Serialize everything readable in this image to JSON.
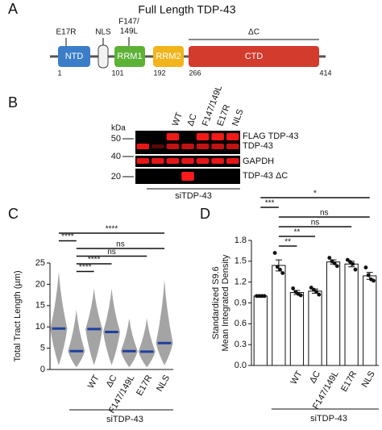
{
  "panel_a": {
    "letter": "A",
    "title": "Full Length TDP-43",
    "domains": [
      {
        "name": "NTD",
        "color": "#3b7dc8"
      },
      {
        "name": "RRM1",
        "color": "#5db236"
      },
      {
        "name": "RRM2",
        "color": "#f1b41c"
      },
      {
        "name": "CTD",
        "color": "#d33b2d"
      }
    ],
    "nls": "NLS",
    "mutation_a": "E17R",
    "mutation_b": [
      "F147/",
      "149L"
    ],
    "deletion": "ΔC",
    "positions": [
      1,
      101,
      192,
      266,
      414
    ]
  },
  "panel_b": {
    "letter": "B",
    "lanes": [
      "WT",
      "ΔC",
      "F147/149L",
      "E17R",
      "NLS"
    ],
    "kda_label": "kDa",
    "markers": [
      50,
      40,
      20
    ],
    "bands": [
      "FLAG TDP-43",
      "TDP-43",
      "GAPDH",
      "TDP-43 ΔC"
    ],
    "group_label": "siTDP-43"
  },
  "chart_data": [
    {
      "type": "swarm",
      "letter": "C",
      "ylabel": "Total Tract Length (µm)",
      "categories": [
        null,
        null,
        "WT",
        "ΔC",
        "F147/149L",
        "E17R",
        "NLS"
      ],
      "values": [
        9.6,
        4.3,
        9.5,
        8.8,
        4.3,
        4.2,
        6.2
      ],
      "low": [
        1,
        0.5,
        1,
        1,
        0.5,
        0.5,
        1
      ],
      "high": [
        23,
        14,
        19,
        19,
        12,
        12,
        21
      ],
      "color": "#1f3f9e",
      "point_color": "#a4a4a4",
      "ylim": [
        0,
        25
      ],
      "yticks": [
        0,
        5,
        10,
        15,
        20,
        25
      ],
      "group_label": "siTDP-43",
      "brackets": [
        {
          "from": 0,
          "to": 6,
          "label": "****"
        },
        {
          "from": 0,
          "to": 1,
          "label": "****"
        },
        {
          "from": 1,
          "to": 6,
          "label": "ns"
        },
        {
          "from": 1,
          "to": 5,
          "label": "ns"
        },
        {
          "from": 1,
          "to": 3,
          "label": "****"
        },
        {
          "from": 1,
          "to": 2,
          "label": "****"
        }
      ]
    },
    {
      "type": "bar",
      "letter": "D",
      "ylabel": [
        "Standardized S9.6",
        "Mean Integrated Density"
      ],
      "categories": [
        null,
        null,
        "WT",
        "ΔC",
        "F147/149L",
        "E17R",
        "NLS"
      ],
      "values": [
        1.0,
        1.44,
        1.05,
        1.07,
        1.49,
        1.46,
        1.29
      ],
      "errors": [
        0,
        0.08,
        0.03,
        0.03,
        0.03,
        0.04,
        0.05
      ],
      "points": [
        [
          1.0,
          1.0,
          1.0,
          1.0
        ],
        [
          1.62,
          1.42,
          1.38,
          1.33
        ],
        [
          1.11,
          1.06,
          1.03,
          1.01
        ],
        [
          1.12,
          1.09,
          1.06,
          1.02
        ],
        [
          1.55,
          1.5,
          1.47,
          1.43
        ],
        [
          1.52,
          1.49,
          1.46,
          1.38
        ],
        [
          1.41,
          1.3,
          1.24,
          1.22
        ]
      ],
      "color": "#ffffff",
      "ylim": [
        0,
        1.8
      ],
      "yticks": [
        {
          "value": 0,
          "label": "0.0"
        },
        0.3,
        0.6,
        0.9,
        1.2,
        1.5,
        1.8
      ],
      "group_label": "siTDP-43",
      "brackets": [
        {
          "from": 0,
          "to": 6,
          "label": "*"
        },
        {
          "from": 0,
          "to": 1,
          "label": "***"
        },
        {
          "from": 1,
          "to": 6,
          "label": "ns"
        },
        {
          "from": 1,
          "to": 5,
          "label": "ns"
        },
        {
          "from": 1,
          "to": 3,
          "label": "**"
        },
        {
          "from": 1,
          "to": 2,
          "label": "**"
        }
      ]
    }
  ]
}
